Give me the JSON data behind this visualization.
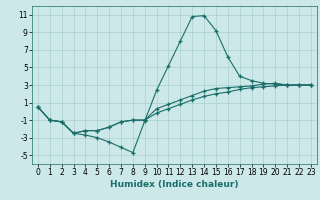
{
  "title": "",
  "xlabel": "Humidex (Indice chaleur)",
  "ylabel": "",
  "bg_color": "#cce8e8",
  "grid_color": "#aacfcf",
  "line_color": "#1a6e6a",
  "xlim": [
    -0.5,
    23.5
  ],
  "ylim": [
    -6,
    12
  ],
  "yticks": [
    -5,
    -3,
    -1,
    1,
    3,
    5,
    7,
    9,
    11
  ],
  "xticks": [
    0,
    1,
    2,
    3,
    4,
    5,
    6,
    7,
    8,
    9,
    10,
    11,
    12,
    13,
    14,
    15,
    16,
    17,
    18,
    19,
    20,
    21,
    22,
    23
  ],
  "series": [
    {
      "x": [
        0,
        1,
        2,
        3,
        4,
        5,
        6,
        7,
        8,
        9,
        10,
        11,
        12,
        13,
        14,
        15,
        16,
        17,
        18,
        19,
        20,
        21,
        22,
        23
      ],
      "y": [
        0.5,
        -1.0,
        -1.2,
        -2.5,
        -2.7,
        -3.0,
        -3.5,
        -4.1,
        -4.7,
        -1.1,
        2.4,
        5.2,
        8.0,
        10.8,
        10.9,
        9.2,
        6.2,
        4.0,
        3.5,
        3.2,
        3.1,
        3.0,
        3.0,
        3.0
      ]
    },
    {
      "x": [
        0,
        1,
        2,
        3,
        4,
        5,
        6,
        7,
        8,
        9,
        10,
        11,
        12,
        13,
        14,
        15,
        16,
        17,
        18,
        19,
        20,
        21,
        22,
        23
      ],
      "y": [
        0.5,
        -1.0,
        -1.2,
        -2.5,
        -2.2,
        -2.2,
        -1.8,
        -1.2,
        -1.0,
        -1.0,
        0.3,
        0.8,
        1.3,
        1.8,
        2.3,
        2.6,
        2.7,
        2.8,
        2.9,
        3.1,
        3.2,
        3.0,
        3.0,
        3.0
      ]
    },
    {
      "x": [
        0,
        1,
        2,
        3,
        4,
        5,
        6,
        7,
        8,
        9,
        10,
        11,
        12,
        13,
        14,
        15,
        16,
        17,
        18,
        19,
        20,
        21,
        22,
        23
      ],
      "y": [
        0.5,
        -1.0,
        -1.2,
        -2.5,
        -2.2,
        -2.2,
        -1.8,
        -1.2,
        -1.0,
        -1.0,
        -0.2,
        0.3,
        0.8,
        1.3,
        1.7,
        2.0,
        2.2,
        2.5,
        2.7,
        2.8,
        2.9,
        3.0,
        3.0,
        3.0
      ]
    }
  ],
  "xlabel_fontsize": 6.5,
  "tick_fontsize": 5.5
}
